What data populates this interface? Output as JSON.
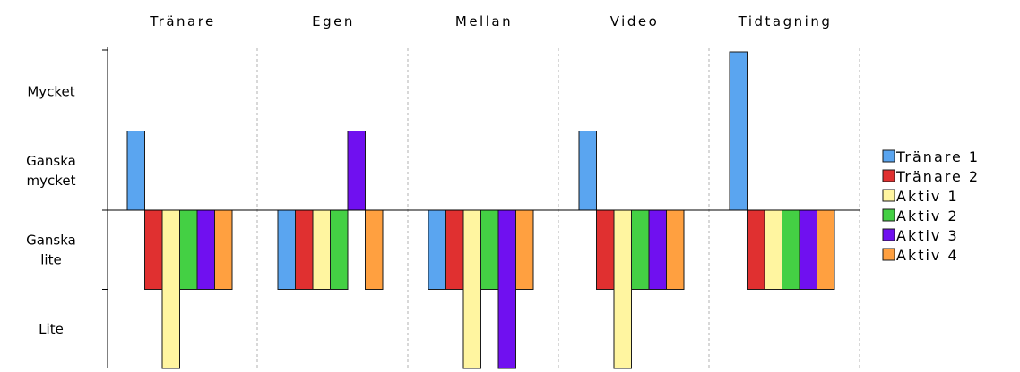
{
  "chart_data": {
    "type": "bar",
    "title": "",
    "xlabel": "",
    "ylabel": "",
    "baseline": 2,
    "ylim": [
      0,
      4
    ],
    "y_levels": [
      {
        "value": 0.5,
        "label": [
          "Lite"
        ]
      },
      {
        "value": 1.5,
        "label": [
          "Ganska",
          "lite"
        ]
      },
      {
        "value": 2.5,
        "label": [
          "Ganska",
          "mycket"
        ]
      },
      {
        "value": 3.5,
        "label": [
          "Mycket"
        ]
      }
    ],
    "categories": [
      "Tränare",
      "Egen",
      "Mellan",
      "Video",
      "Tidtagning"
    ],
    "series": [
      {
        "name": "Tränare 1",
        "color": "#5aa5f0",
        "values": [
          3,
          1,
          1,
          3,
          4
        ]
      },
      {
        "name": "Tränare 2",
        "color": "#e03030",
        "values": [
          1,
          1,
          1,
          1,
          1
        ]
      },
      {
        "name": "Aktiv 1",
        "color": "#fff5a0",
        "values": [
          0,
          1,
          0,
          0,
          1
        ]
      },
      {
        "name": "Aktiv 2",
        "color": "#44d044",
        "values": [
          1,
          1,
          1,
          1,
          1
        ]
      },
      {
        "name": "Aktiv 3",
        "color": "#7010f0",
        "values": [
          1,
          3,
          0,
          1,
          1
        ]
      },
      {
        "name": "Aktiv 4",
        "color": "#ffa040",
        "values": [
          1,
          1,
          1,
          1,
          1
        ]
      }
    ],
    "grid": true,
    "legend_position": "right"
  }
}
